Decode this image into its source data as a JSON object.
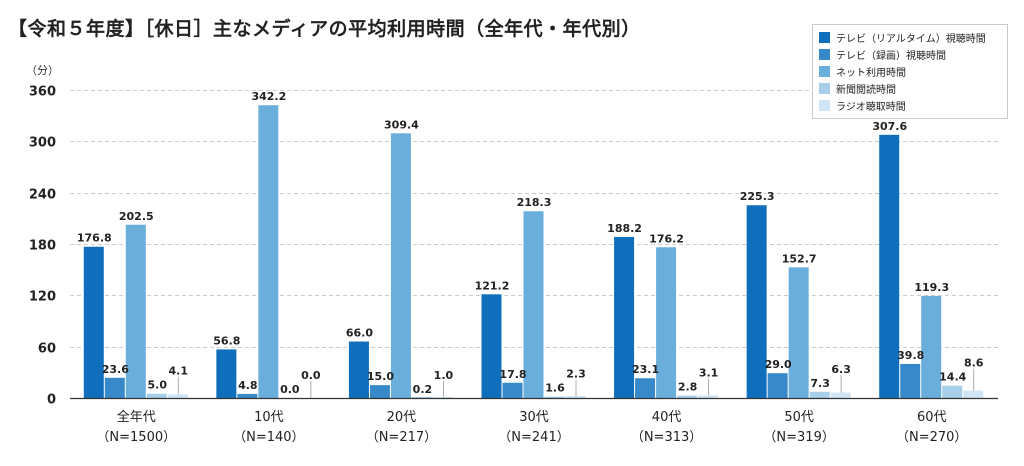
{
  "chart_data": {
    "type": "bar",
    "title": "【令和５年度】［休日］主なメディアの平均利用時間（全年代・年代別）",
    "ylabel": "（分）",
    "xlabel": "",
    "ylim": [
      0,
      360
    ],
    "yticks": [
      0,
      60,
      120,
      180,
      240,
      300,
      360
    ],
    "grid": true,
    "legend_position": "top-right",
    "categories": [
      [
        "全年代",
        "（N=1500）"
      ],
      [
        "10代",
        "（N=140）"
      ],
      [
        "20代",
        "（N=217）"
      ],
      [
        "30代",
        "（N=241）"
      ],
      [
        "40代",
        "（N=313）"
      ],
      [
        "50代",
        "（N=319）"
      ],
      [
        "60代",
        "（N=270）"
      ]
    ],
    "series": [
      {
        "name": "テレビ（リアルタイム）視聴時間",
        "color": "#0f6fbd",
        "values": [
          176.8,
          56.8,
          66.0,
          121.2,
          188.2,
          225.3,
          307.6
        ],
        "labels": [
          "176.8",
          "56.8",
          "66.0",
          "121.2",
          "188.2",
          "225.3",
          "307.6"
        ]
      },
      {
        "name": "テレビ（録画）視聴時間",
        "color": "#3889c9",
        "values": [
          23.6,
          4.8,
          15.0,
          17.8,
          23.1,
          29.0,
          39.8
        ],
        "labels": [
          "23.6",
          "4.8",
          "15.0",
          "17.8",
          "23.1",
          "29.0",
          "39.8"
        ]
      },
      {
        "name": "ネット利用時間",
        "color": "#6aaedb",
        "values": [
          202.5,
          342.2,
          309.4,
          218.3,
          176.2,
          152.7,
          119.3
        ],
        "labels": [
          "202.5",
          "342.2",
          "309.4",
          "218.3",
          "176.2",
          "152.7",
          "119.3"
        ]
      },
      {
        "name": "新聞閲読時間",
        "color": "#a8cfea",
        "values": [
          5.0,
          0.0,
          0.2,
          1.6,
          2.8,
          7.3,
          14.4
        ],
        "labels": [
          "5.0",
          "0.0",
          "0.2",
          "1.6",
          "2.8",
          "7.3",
          "14.4"
        ]
      },
      {
        "name": "ラジオ聴取時間",
        "color": "#cfe4f4",
        "values": [
          4.1,
          0.0,
          1.0,
          2.3,
          3.1,
          6.3,
          8.6
        ],
        "labels": [
          "4.1",
          "0.0",
          "1.0",
          "2.3",
          "3.1",
          "6.3",
          "8.6"
        ]
      }
    ]
  }
}
